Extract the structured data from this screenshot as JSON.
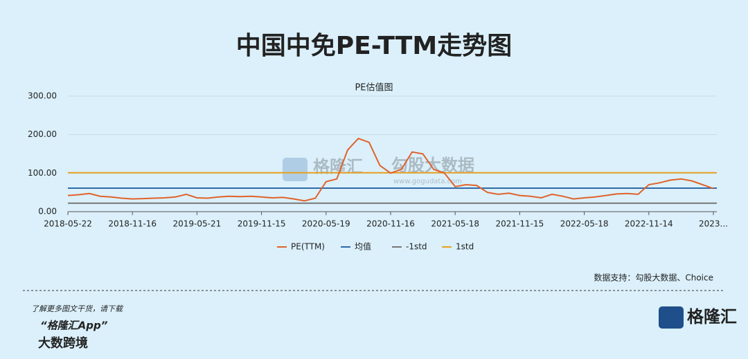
{
  "header": {
    "title": "中国中免PE-TTM走势图"
  },
  "chart_data": {
    "type": "line",
    "title": "PE估值图",
    "categories": [
      "2018-05-22",
      null,
      null,
      null,
      null,
      null,
      "2018-11-16",
      null,
      null,
      null,
      null,
      null,
      "2019-05-21",
      null,
      null,
      null,
      null,
      null,
      "2019-11-15",
      null,
      null,
      null,
      null,
      null,
      "2020-05-19",
      null,
      null,
      null,
      null,
      null,
      "2020-11-16",
      null,
      null,
      null,
      null,
      null,
      "2021-05-18",
      null,
      null,
      null,
      null,
      null,
      "2021-11-15",
      null,
      null,
      null,
      null,
      null,
      "2022-05-18",
      null,
      null,
      null,
      null,
      null,
      "2022-11-14",
      null,
      null,
      null,
      null,
      null,
      "2023..."
    ],
    "series": [
      {
        "name": "PE(TTM)",
        "color": "#e0622a",
        "values": [
          42,
          44,
          47,
          40,
          38,
          35,
          33,
          34,
          35,
          36,
          38,
          45,
          36,
          35,
          38,
          40,
          39,
          40,
          38,
          36,
          37,
          33,
          28,
          35,
          78,
          85,
          160,
          190,
          180,
          120,
          100,
          110,
          155,
          150,
          110,
          100,
          65,
          70,
          68,
          50,
          45,
          48,
          42,
          40,
          36,
          45,
          40,
          33,
          36,
          38,
          42,
          46,
          47,
          45,
          70,
          75,
          82,
          85,
          80,
          70,
          60
        ]
      }
    ],
    "reference_lines": [
      {
        "name": "均值",
        "color": "#2f6aa8",
        "value": 61
      },
      {
        "name": "-1std",
        "color": "#777777",
        "value": 22
      },
      {
        "name": "1std",
        "color": "#e6a020",
        "value": 101
      }
    ],
    "ylim": [
      0,
      300
    ],
    "yticks": [
      {
        "value": 0,
        "label": "0.00"
      },
      {
        "value": 100,
        "label": "100.00"
      },
      {
        "value": 200,
        "label": "200.00"
      },
      {
        "value": 300,
        "label": "300.00"
      }
    ],
    "grid": true,
    "source": "数据支持：勾股大数据、Choice"
  },
  "watermark": {
    "brand": "格隆汇",
    "partner": "勾股大数据",
    "url": "www.gogudata.com"
  },
  "footer": {
    "line1": "了解更多图文干货，请下载",
    "line2": "“格隆汇App”",
    "logo": "格隆汇",
    "corner": "大数跨境"
  }
}
